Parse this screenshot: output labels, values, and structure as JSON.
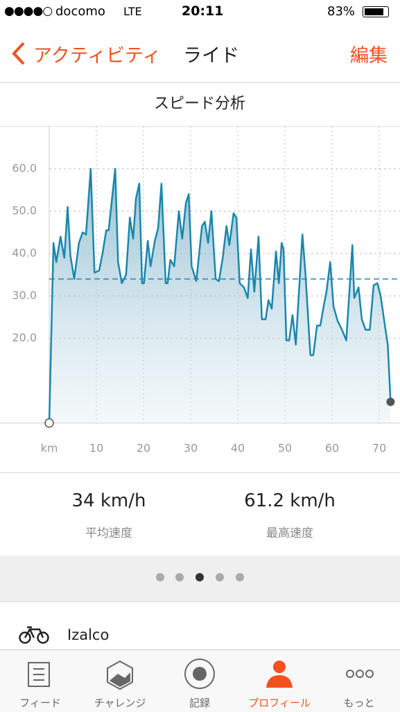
{
  "status_bar": {
    "carrier": "docomo",
    "network": "LTE",
    "time": "20:11",
    "battery": "83%"
  },
  "nav": {
    "back": "アクティビティ",
    "title": "ライド",
    "action": "編集"
  },
  "chart_data": {
    "type": "line",
    "title": "スピード分析",
    "x_label": "km",
    "color": "#1a86ad",
    "average": 34,
    "x": [
      0,
      0.9,
      1.5,
      2.4,
      3.2,
      3.9,
      4.5,
      5.3,
      6.3,
      7.1,
      7.8,
      8.8,
      9.6,
      10.6,
      11.3,
      12.1,
      12.6,
      14,
      14.6,
      15.4,
      16.3,
      17.1,
      17.8,
      18.4,
      19.1,
      19.7,
      20.1,
      20.9,
      21.5,
      22.4,
      23.1,
      23.8,
      24.7,
      25.1,
      25.7,
      26.5,
      27.5,
      28.2,
      29,
      29.6,
      30.2,
      31.2,
      32.4,
      33,
      33.7,
      34.4,
      35.3,
      36,
      36.8,
      37.6,
      38.2,
      39.1,
      39.7,
      40.4,
      41.3,
      42.1,
      42.8,
      43.5,
      44.4,
      45.1,
      45.9,
      46.5,
      47.2,
      48.1,
      48.7,
      49.3,
      49.7,
      50.3,
      50.9,
      51.6,
      52.3,
      53.7,
      54.3,
      55.4,
      56,
      56.8,
      57.5,
      58.2,
      58.8,
      59.6,
      60.3,
      61.2,
      62.1,
      63,
      64.3,
      64.7,
      65.6,
      66.3,
      67.1,
      68,
      68.8,
      69.6,
      70.3,
      71.2,
      71.8,
      72.4
    ],
    "values": [
      0,
      42.5,
      38,
      44,
      39,
      51,
      39.5,
      34,
      42.5,
      45,
      44.5,
      60,
      35.5,
      36,
      40,
      45.5,
      45.5,
      60,
      38,
      33,
      35,
      48.5,
      43.5,
      53,
      56.5,
      33,
      33,
      43,
      37,
      43,
      46,
      56.5,
      33,
      33,
      38.5,
      37,
      50,
      43.5,
      52,
      54,
      37,
      33.5,
      46.5,
      47.5,
      42.5,
      50,
      34,
      33.5,
      39,
      46.5,
      42,
      49.5,
      48.5,
      33,
      32,
      29.5,
      41,
      31,
      44,
      24.5,
      24.5,
      29,
      27,
      40.5,
      33,
      42.5,
      41,
      19.5,
      19.5,
      25.5,
      18.5,
      44.5,
      36,
      16,
      16,
      23,
      23,
      27.5,
      31,
      38,
      27.5,
      24,
      22,
      19.5,
      42,
      29.5,
      32,
      24.5,
      22,
      22,
      32.5,
      33,
      30,
      23,
      18.5,
      5
    ],
    "xlim": [
      0,
      74.4
    ],
    "ylim": [
      0,
      70
    ],
    "xticks": [
      10,
      20,
      30,
      40,
      50,
      60,
      70
    ],
    "yticks": [
      {
        "value": 20,
        "label": "20.0"
      },
      {
        "value": 30,
        "label": "30.0"
      },
      {
        "value": 40,
        "label": "40.0"
      },
      {
        "value": 50,
        "label": "50.0"
      },
      {
        "value": 60,
        "label": "60.0"
      }
    ],
    "grid": true
  },
  "stats": [
    {
      "value": "34 km/h",
      "label": "平均速度"
    },
    {
      "value": "61.2 km/h",
      "label": "最高速度"
    }
  ],
  "gear": "Izalco",
  "tabs": [
    "フィード",
    "チャレンジ",
    "記録",
    "プロフィール",
    "もっと"
  ]
}
